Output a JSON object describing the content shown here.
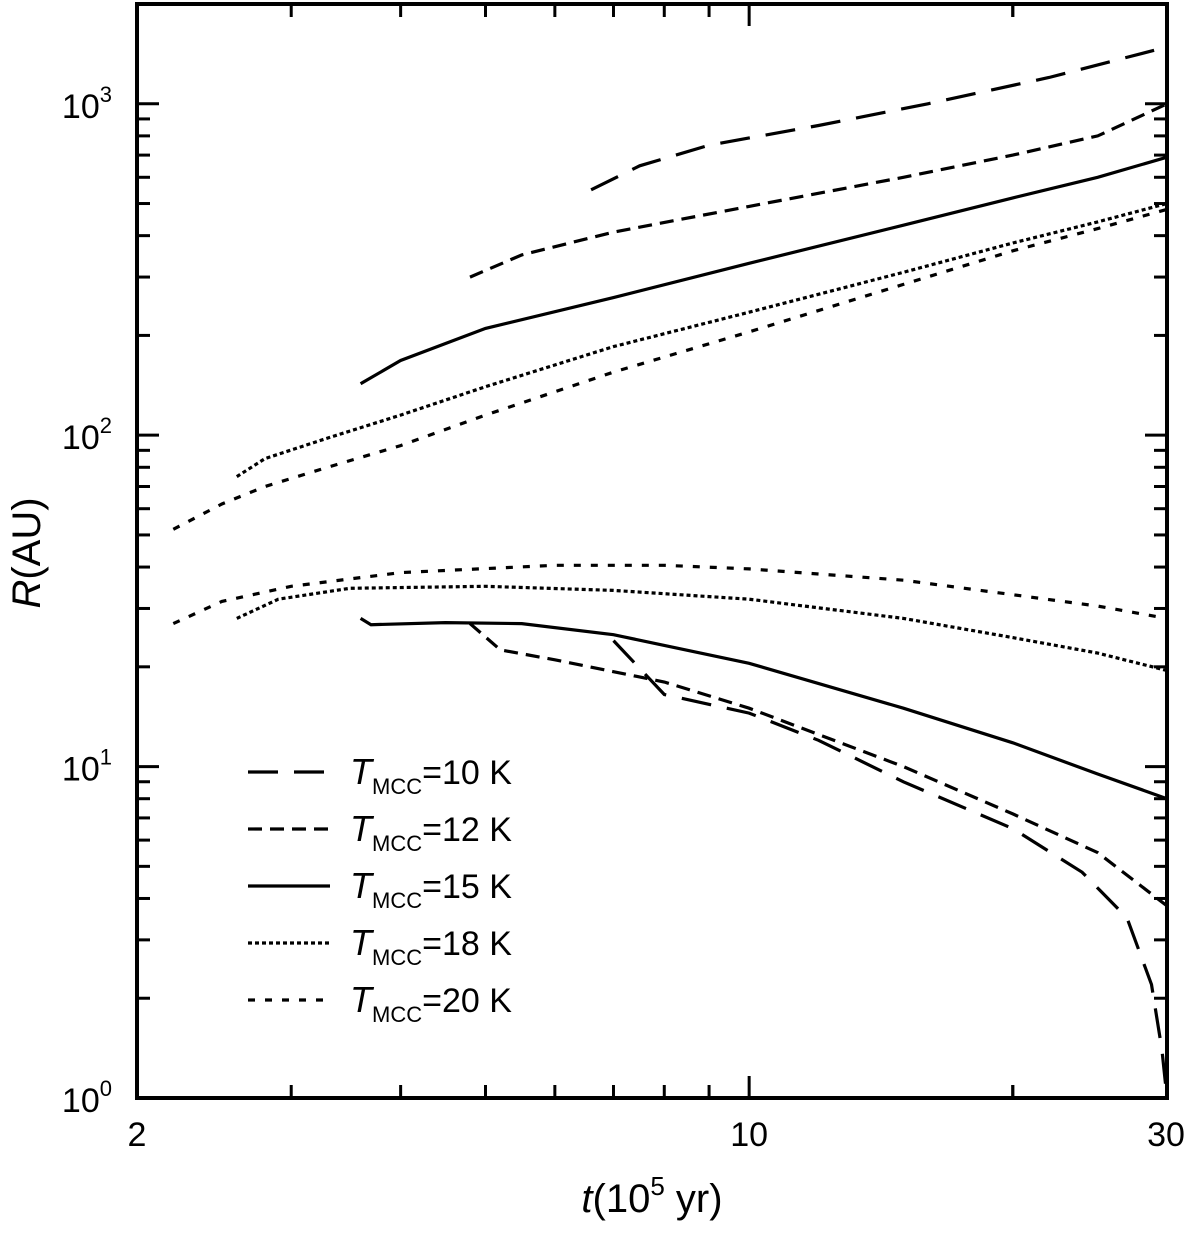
{
  "chart_data": {
    "type": "line",
    "x_scale": "log",
    "y_scale": "log",
    "xlim": [
      2,
      30
    ],
    "ylim": [
      1,
      2000
    ],
    "x_ticks": [
      {
        "value": 2,
        "label": "2"
      },
      {
        "value": 10,
        "label": "10"
      },
      {
        "value": 30,
        "label": "30"
      }
    ],
    "y_ticks": [
      {
        "value": 1,
        "base": "10",
        "exp": "0"
      },
      {
        "value": 10,
        "base": "10",
        "exp": "1"
      },
      {
        "value": 100,
        "base": "10",
        "exp": "2"
      },
      {
        "value": 1000,
        "base": "10",
        "exp": "3"
      }
    ],
    "xlabel": {
      "var": "t",
      "pre": "(10",
      "exp": "5",
      "post": " yr)"
    },
    "ylabel": {
      "var": "R",
      "rest": "(AU)"
    },
    "grid": false,
    "legend_position": "bottom-left",
    "series": [
      {
        "name": "T_MCC=10 K",
        "legend_var": "T",
        "legend_sub": "MCC",
        "legend_rest": "=10 K",
        "dash": "long",
        "upper": [
          [
            6.6,
            550
          ],
          [
            7.5,
            650
          ],
          [
            9,
            750
          ],
          [
            12,
            860
          ],
          [
            16,
            1000
          ],
          [
            22,
            1200
          ],
          [
            29,
            1450
          ]
        ],
        "lower": [
          [
            7.0,
            24
          ],
          [
            8,
            16.5
          ],
          [
            10,
            14.5
          ],
          [
            12,
            12
          ],
          [
            15,
            9
          ],
          [
            20,
            6.5
          ],
          [
            24,
            4.8
          ],
          [
            27,
            3.5
          ],
          [
            28.8,
            2.2
          ],
          [
            29.6,
            1.4
          ],
          [
            30,
            1.0
          ]
        ]
      },
      {
        "name": "T_MCC=12 K",
        "legend_var": "T",
        "legend_sub": "MCC",
        "legend_rest": "=12 K",
        "dash": "medium",
        "upper": [
          [
            4.8,
            300
          ],
          [
            5.5,
            350
          ],
          [
            7,
            410
          ],
          [
            10,
            490
          ],
          [
            15,
            600
          ],
          [
            20,
            700
          ],
          [
            25,
            800
          ],
          [
            30,
            1000
          ]
        ],
        "lower": [
          [
            4.8,
            27
          ],
          [
            5.2,
            22.5
          ],
          [
            6,
            21
          ],
          [
            8,
            18
          ],
          [
            10,
            15
          ],
          [
            15,
            10
          ],
          [
            20,
            7.2
          ],
          [
            25,
            5.5
          ],
          [
            30,
            3.8
          ]
        ]
      },
      {
        "name": "T_MCC=15 K",
        "legend_var": "T",
        "legend_sub": "MCC",
        "legend_rest": "=15 K",
        "dash": "solid",
        "upper": [
          [
            3.6,
            143
          ],
          [
            4,
            168
          ],
          [
            5,
            210
          ],
          [
            7,
            260
          ],
          [
            10,
            330
          ],
          [
            15,
            430
          ],
          [
            20,
            520
          ],
          [
            25,
            600
          ],
          [
            30,
            690
          ]
        ],
        "lower": [
          [
            3.6,
            28
          ],
          [
            3.7,
            26.8
          ],
          [
            4.5,
            27.2
          ],
          [
            5.5,
            27
          ],
          [
            7,
            25
          ],
          [
            10,
            20.5
          ],
          [
            15,
            15
          ],
          [
            20,
            11.8
          ],
          [
            25,
            9.5
          ],
          [
            30,
            8
          ]
        ]
      },
      {
        "name": "T_MCC=18 K",
        "legend_var": "T",
        "legend_sub": "MCC",
        "legend_rest": "=18 K",
        "dash": "dotted",
        "upper": [
          [
            2.6,
            75
          ],
          [
            2.8,
            85
          ],
          [
            3.3,
            98
          ],
          [
            4,
            115
          ],
          [
            5,
            140
          ],
          [
            7,
            185
          ],
          [
            10,
            235
          ],
          [
            15,
            310
          ],
          [
            20,
            380
          ],
          [
            25,
            440
          ],
          [
            30,
            500
          ]
        ],
        "lower": [
          [
            2.6,
            28
          ],
          [
            2.9,
            32
          ],
          [
            3.5,
            34.5
          ],
          [
            5,
            35
          ],
          [
            7,
            34
          ],
          [
            10,
            32
          ],
          [
            15,
            28
          ],
          [
            20,
            24.5
          ],
          [
            25,
            22
          ],
          [
            30,
            19.5
          ]
        ]
      },
      {
        "name": "T_MCC=20 K",
        "legend_var": "T",
        "legend_sub": "MCC",
        "legend_rest": "=20 K",
        "dash": "sparse",
        "upper": [
          [
            2.2,
            52
          ],
          [
            2.5,
            62
          ],
          [
            2.8,
            70
          ],
          [
            3.3,
            80
          ],
          [
            4,
            93
          ],
          [
            5,
            115
          ],
          [
            7,
            155
          ],
          [
            10,
            205
          ],
          [
            15,
            285
          ],
          [
            20,
            360
          ],
          [
            25,
            420
          ],
          [
            30,
            480
          ]
        ],
        "lower": [
          [
            2.2,
            27
          ],
          [
            2.5,
            31.5
          ],
          [
            3,
            35
          ],
          [
            4,
            38.5
          ],
          [
            6,
            40.5
          ],
          [
            8,
            40.5
          ],
          [
            10,
            39.5
          ],
          [
            15,
            36.5
          ],
          [
            20,
            33
          ],
          [
            25,
            30.5
          ],
          [
            30,
            28
          ]
        ]
      }
    ]
  }
}
